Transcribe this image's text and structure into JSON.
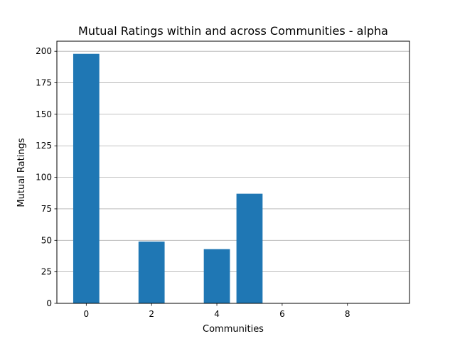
{
  "chart_data": {
    "type": "bar",
    "title": "Mutual Ratings within and across Communities - alpha",
    "xlabel": "Communities",
    "ylabel": "Mutual Ratings",
    "x": [
      0,
      2,
      4,
      5
    ],
    "values": [
      198,
      49,
      43,
      87
    ],
    "xlim": [
      -0.9,
      9.9
    ],
    "ylim": [
      0,
      208
    ],
    "xticks": [
      0,
      2,
      4,
      6,
      8
    ],
    "yticks": [
      0,
      25,
      50,
      75,
      100,
      125,
      150,
      175,
      200
    ],
    "bar_width": 0.8,
    "bar_color": "#1f77b4",
    "grid": "y-major",
    "legend": "none"
  }
}
